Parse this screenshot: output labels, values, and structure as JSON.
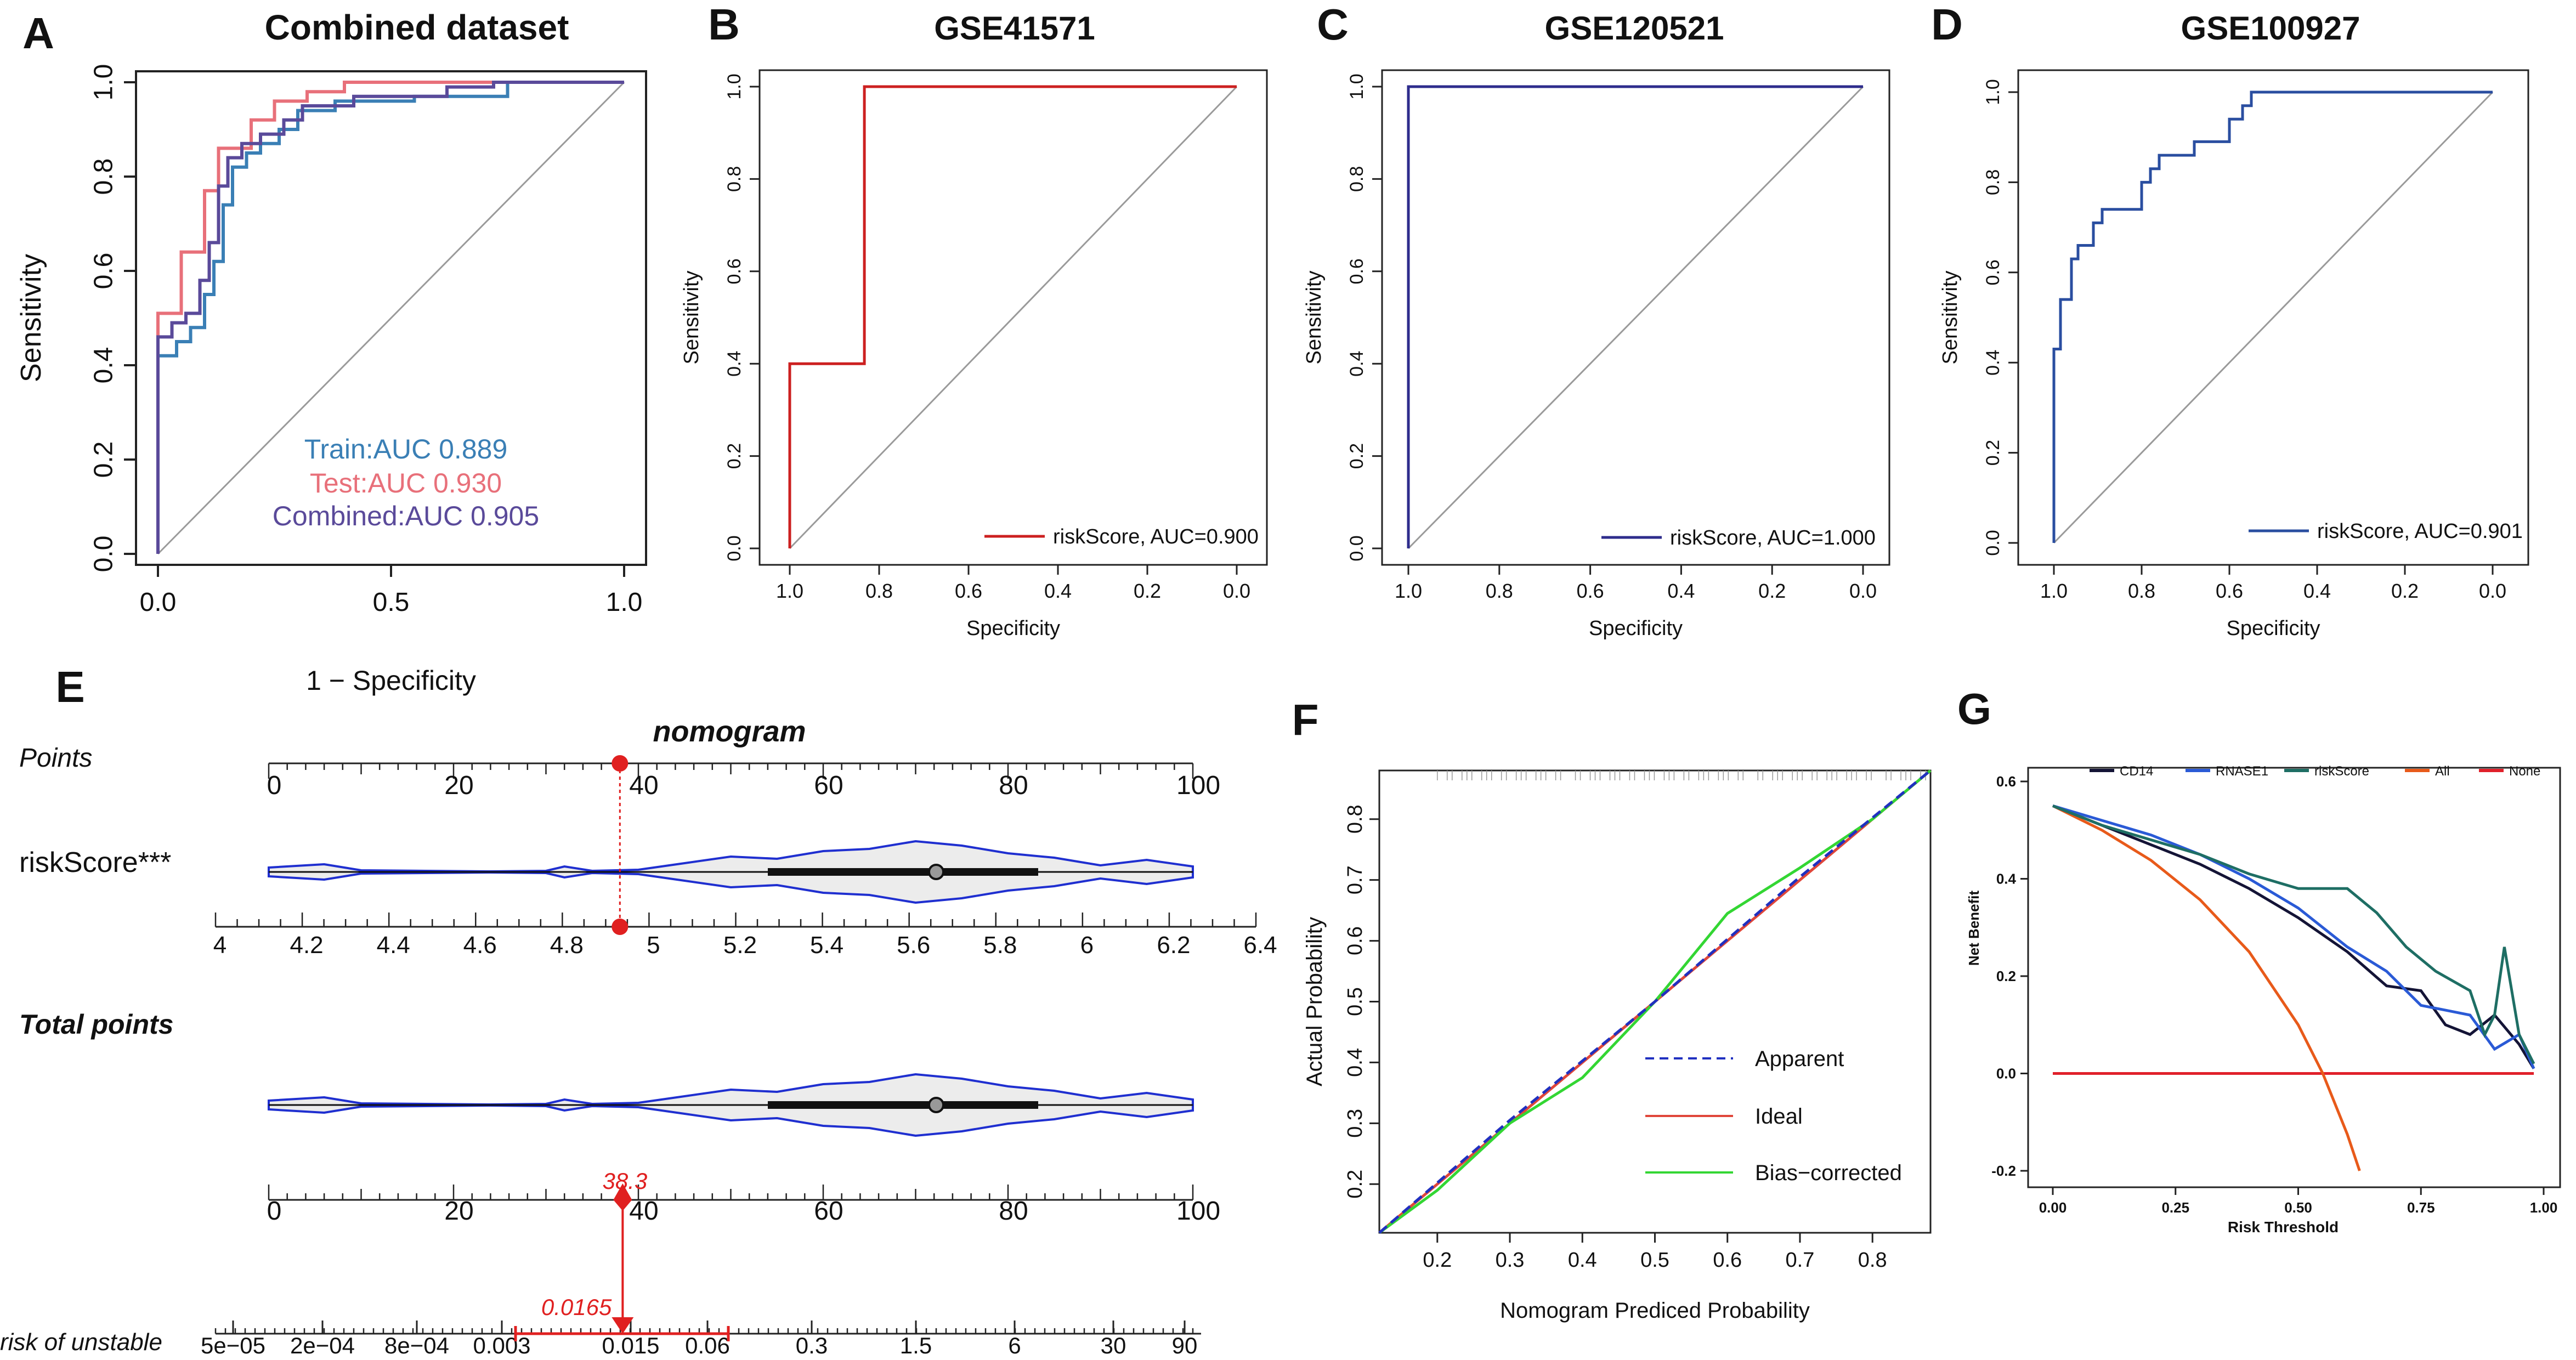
{
  "chart_data": [
    {
      "panel": "A",
      "type": "line",
      "title": "Combined dataset",
      "xlabel": "1 − Specificity",
      "ylabel": "Sensitivity",
      "xlim": [
        0,
        1
      ],
      "ylim": [
        0,
        1
      ],
      "xticks": [
        "0.0",
        "0.5",
        "1.0"
      ],
      "yticks": [
        "0.0",
        "0.2",
        "0.4",
        "0.6",
        "0.8",
        "1.0"
      ],
      "series": [
        {
          "name": "Train",
          "legend": "Train:AUC 0.889",
          "color": "#3a7fb5",
          "points": [
            [
              0,
              0
            ],
            [
              0,
              0.42
            ],
            [
              0.04,
              0.42
            ],
            [
              0.04,
              0.45
            ],
            [
              0.07,
              0.45
            ],
            [
              0.07,
              0.48
            ],
            [
              0.1,
              0.48
            ],
            [
              0.1,
              0.55
            ],
            [
              0.12,
              0.55
            ],
            [
              0.12,
              0.62
            ],
            [
              0.14,
              0.62
            ],
            [
              0.14,
              0.74
            ],
            [
              0.16,
              0.74
            ],
            [
              0.16,
              0.82
            ],
            [
              0.19,
              0.82
            ],
            [
              0.19,
              0.85
            ],
            [
              0.22,
              0.85
            ],
            [
              0.22,
              0.87
            ],
            [
              0.26,
              0.87
            ],
            [
              0.26,
              0.9
            ],
            [
              0.3,
              0.9
            ],
            [
              0.3,
              0.94
            ],
            [
              0.38,
              0.94
            ],
            [
              0.38,
              0.96
            ],
            [
              0.55,
              0.96
            ],
            [
              0.55,
              0.97
            ],
            [
              0.75,
              0.97
            ],
            [
              0.75,
              1
            ],
            [
              1,
              1
            ]
          ]
        },
        {
          "name": "Test",
          "legend": "Test:AUC 0.930",
          "color": "#e8707a",
          "points": [
            [
              0,
              0
            ],
            [
              0,
              0.51
            ],
            [
              0.05,
              0.51
            ],
            [
              0.05,
              0.64
            ],
            [
              0.1,
              0.64
            ],
            [
              0.1,
              0.77
            ],
            [
              0.13,
              0.77
            ],
            [
              0.13,
              0.86
            ],
            [
              0.2,
              0.86
            ],
            [
              0.2,
              0.92
            ],
            [
              0.25,
              0.92
            ],
            [
              0.25,
              0.96
            ],
            [
              0.32,
              0.96
            ],
            [
              0.32,
              0.98
            ],
            [
              0.4,
              0.98
            ],
            [
              0.4,
              1
            ],
            [
              1,
              1
            ]
          ]
        },
        {
          "name": "Combined",
          "legend": "Combined:AUC 0.905",
          "color": "#5a4a9a",
          "points": [
            [
              0,
              0
            ],
            [
              0,
              0.46
            ],
            [
              0.03,
              0.46
            ],
            [
              0.03,
              0.49
            ],
            [
              0.06,
              0.49
            ],
            [
              0.06,
              0.51
            ],
            [
              0.09,
              0.51
            ],
            [
              0.09,
              0.58
            ],
            [
              0.11,
              0.58
            ],
            [
              0.11,
              0.66
            ],
            [
              0.13,
              0.66
            ],
            [
              0.13,
              0.78
            ],
            [
              0.15,
              0.78
            ],
            [
              0.15,
              0.84
            ],
            [
              0.18,
              0.84
            ],
            [
              0.18,
              0.87
            ],
            [
              0.22,
              0.87
            ],
            [
              0.22,
              0.89
            ],
            [
              0.27,
              0.89
            ],
            [
              0.27,
              0.92
            ],
            [
              0.31,
              0.92
            ],
            [
              0.31,
              0.95
            ],
            [
              0.42,
              0.95
            ],
            [
              0.42,
              0.97
            ],
            [
              0.62,
              0.97
            ],
            [
              0.62,
              0.99
            ],
            [
              0.72,
              0.99
            ],
            [
              0.72,
              1
            ],
            [
              1,
              1
            ]
          ]
        }
      ]
    },
    {
      "panel": "B",
      "type": "line",
      "title": "GSE41571",
      "xlabel": "Specificity",
      "ylabel": "Sensitivity",
      "xticks": [
        "1.0",
        "0.8",
        "0.6",
        "0.4",
        "0.2",
        "0.0"
      ],
      "yticks": [
        "0.0",
        "0.2",
        "0.4",
        "0.6",
        "0.8",
        "1.0"
      ],
      "legend": "riskScore, AUC=0.900",
      "color": "#cc2020",
      "points": [
        [
          1,
          0
        ],
        [
          1,
          0.4
        ],
        [
          0.833,
          0.4
        ],
        [
          0.833,
          1
        ],
        [
          0,
          1
        ]
      ]
    },
    {
      "panel": "C",
      "type": "line",
      "title": "GSE120521",
      "xlabel": "Specificity",
      "ylabel": "Sensitivity",
      "xticks": [
        "1.0",
        "0.8",
        "0.6",
        "0.4",
        "0.2",
        "0.0"
      ],
      "yticks": [
        "0.0",
        "0.2",
        "0.4",
        "0.6",
        "0.8",
        "1.0"
      ],
      "legend": "riskScore, AUC=1.000",
      "color": "#2e2c8c",
      "points": [
        [
          1,
          0
        ],
        [
          1,
          1
        ],
        [
          0,
          1
        ]
      ]
    },
    {
      "panel": "D",
      "type": "line",
      "title": "GSE100927",
      "xlabel": "Specificity",
      "ylabel": "Sensitivity",
      "xticks": [
        "1.0",
        "0.8",
        "0.6",
        "0.4",
        "0.2",
        "0.0"
      ],
      "yticks": [
        "0.0",
        "0.2",
        "0.4",
        "0.6",
        "0.8",
        "1.0"
      ],
      "legend": "riskScore, AUC=0.901",
      "color": "#2a4ea0",
      "points": [
        [
          1,
          0
        ],
        [
          1,
          0.43
        ],
        [
          0.985,
          0.43
        ],
        [
          0.985,
          0.54
        ],
        [
          0.96,
          0.54
        ],
        [
          0.96,
          0.63
        ],
        [
          0.945,
          0.63
        ],
        [
          0.945,
          0.66
        ],
        [
          0.91,
          0.66
        ],
        [
          0.91,
          0.71
        ],
        [
          0.89,
          0.71
        ],
        [
          0.89,
          0.74
        ],
        [
          0.8,
          0.74
        ],
        [
          0.8,
          0.8
        ],
        [
          0.78,
          0.8
        ],
        [
          0.78,
          0.83
        ],
        [
          0.76,
          0.83
        ],
        [
          0.76,
          0.86
        ],
        [
          0.68,
          0.86
        ],
        [
          0.68,
          0.89
        ],
        [
          0.6,
          0.89
        ],
        [
          0.6,
          0.94
        ],
        [
          0.57,
          0.94
        ],
        [
          0.57,
          0.97
        ],
        [
          0.55,
          0.97
        ],
        [
          0.55,
          1
        ],
        [
          0,
          1
        ]
      ]
    },
    {
      "panel": "E",
      "type": "nomogram",
      "title": "nomogram",
      "rows": [
        "Points",
        "riskScore***",
        "Total points",
        "risk of unstable"
      ],
      "points_ticks": [
        "0",
        "20",
        "40",
        "60",
        "80",
        "100"
      ],
      "riskscore_ticks": [
        "4",
        "4.2",
        "4.4",
        "4.6",
        "4.8",
        "5",
        "5.2",
        "5.4",
        "5.6",
        "5.8",
        "6",
        "6.2",
        "6.4"
      ],
      "total_points_ticks": [
        "0",
        "20",
        "40",
        "60",
        "80",
        "100"
      ],
      "risk_ticks": [
        "5e−05",
        "2e−04",
        "8e−04",
        "0.003",
        "0.015",
        "0.06",
        "0.3",
        "1.5",
        "6",
        "30",
        "90"
      ],
      "selected_riskscore": 4.95,
      "selected_points": 38,
      "total_points_value": "38.3",
      "risk_value": "0.0165"
    },
    {
      "panel": "F",
      "type": "line",
      "title": "",
      "xlabel": "Nomogram Prediced Probability",
      "ylabel": "Actual Probability",
      "xlim": [
        0.12,
        0.88
      ],
      "ylim": [
        0.12,
        0.88
      ],
      "xticks": [
        "0.2",
        "0.3",
        "0.4",
        "0.5",
        "0.6",
        "0.7",
        "0.8"
      ],
      "yticks": [
        "0.2",
        "0.3",
        "0.4",
        "0.5",
        "0.6",
        "0.7",
        "0.8"
      ],
      "series": [
        {
          "name": "Apparent",
          "color": "#2030c0",
          "style": "dashed",
          "points": [
            [
              0.12,
              0.12
            ],
            [
              0.3,
              0.305
            ],
            [
              0.5,
              0.5
            ],
            [
              0.7,
              0.705
            ],
            [
              0.88,
              0.88
            ]
          ]
        },
        {
          "name": "Ideal",
          "color": "#e0463a",
          "style": "solid",
          "points": [
            [
              0.12,
              0.12
            ],
            [
              0.88,
              0.88
            ]
          ]
        },
        {
          "name": "Bias−corrected",
          "color": "#33d633",
          "style": "solid",
          "points": [
            [
              0.12,
              0.12
            ],
            [
              0.2,
              0.19
            ],
            [
              0.3,
              0.3
            ],
            [
              0.4,
              0.375
            ],
            [
              0.5,
              0.5
            ],
            [
              0.6,
              0.645
            ],
            [
              0.7,
              0.72
            ],
            [
              0.8,
              0.8
            ],
            [
              0.88,
              0.88
            ]
          ]
        }
      ]
    },
    {
      "panel": "G",
      "type": "line",
      "title": "",
      "xlabel": "Risk Threshold",
      "ylabel": "Net Benefit",
      "xlim": [
        0,
        1
      ],
      "ylim": [
        -0.2,
        0.6
      ],
      "xticks": [
        "0.00",
        "0.25",
        "0.50",
        "0.75",
        "1.00"
      ],
      "yticks": [
        "-0.2",
        "0.0",
        "0.2",
        "0.4",
        "0.6"
      ],
      "series": [
        {
          "name": "CD14",
          "color": "#141436",
          "points": [
            [
              0,
              0.55
            ],
            [
              0.1,
              0.51
            ],
            [
              0.2,
              0.47
            ],
            [
              0.3,
              0.43
            ],
            [
              0.4,
              0.38
            ],
            [
              0.5,
              0.32
            ],
            [
              0.6,
              0.25
            ],
            [
              0.68,
              0.18
            ],
            [
              0.75,
              0.17
            ],
            [
              0.8,
              0.1
            ],
            [
              0.85,
              0.08
            ],
            [
              0.9,
              0.12
            ],
            [
              0.95,
              0.06
            ],
            [
              0.98,
              0.01
            ]
          ]
        },
        {
          "name": "RNASE1",
          "color": "#2a5ad6",
          "points": [
            [
              0,
              0.55
            ],
            [
              0.1,
              0.52
            ],
            [
              0.2,
              0.49
            ],
            [
              0.3,
              0.45
            ],
            [
              0.4,
              0.4
            ],
            [
              0.5,
              0.34
            ],
            [
              0.6,
              0.26
            ],
            [
              0.68,
              0.21
            ],
            [
              0.75,
              0.14
            ],
            [
              0.8,
              0.13
            ],
            [
              0.85,
              0.12
            ],
            [
              0.9,
              0.05
            ],
            [
              0.95,
              0.08
            ],
            [
              0.98,
              0.01
            ]
          ]
        },
        {
          "name": "riskScore",
          "color": "#1e6e64",
          "points": [
            [
              0,
              0.55
            ],
            [
              0.1,
              0.51
            ],
            [
              0.2,
              0.48
            ],
            [
              0.3,
              0.45
            ],
            [
              0.4,
              0.41
            ],
            [
              0.5,
              0.38
            ],
            [
              0.6,
              0.38
            ],
            [
              0.66,
              0.33
            ],
            [
              0.72,
              0.26
            ],
            [
              0.78,
              0.21
            ],
            [
              0.85,
              0.17
            ],
            [
              0.88,
              0.08
            ],
            [
              0.9,
              0.12
            ],
            [
              0.92,
              0.26
            ],
            [
              0.95,
              0.08
            ],
            [
              0.98,
              0.02
            ]
          ]
        },
        {
          "name": "All",
          "color": "#e85a1a",
          "points": [
            [
              0,
              0.55
            ],
            [
              0.1,
              0.5
            ],
            [
              0.2,
              0.438
            ],
            [
              0.3,
              0.357
            ],
            [
              0.4,
              0.25
            ],
            [
              0.5,
              0.1
            ],
            [
              0.55,
              0
            ],
            [
              0.6,
              -0.125
            ],
            [
              0.625,
              -0.2
            ]
          ]
        },
        {
          "name": "None",
          "color": "#e0202a",
          "points": [
            [
              0,
              0
            ],
            [
              0.98,
              0
            ]
          ]
        }
      ]
    }
  ],
  "panel_labels": [
    "A",
    "B",
    "C",
    "D",
    "E",
    "F",
    "G"
  ]
}
